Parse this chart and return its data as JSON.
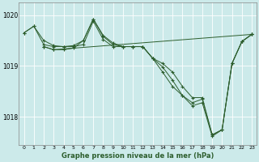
{
  "title": "Graphe pression niveau de la mer (hPa)",
  "background_color": "#cceaea",
  "line_color": "#2d5e2d",
  "marker": "+",
  "xlim": [
    -0.5,
    23.5
  ],
  "ylim": [
    1017.45,
    1020.25
  ],
  "yticks": [
    1018,
    1019,
    1020
  ],
  "xticks": [
    0,
    1,
    2,
    3,
    4,
    5,
    6,
    7,
    8,
    9,
    10,
    11,
    12,
    13,
    14,
    15,
    16,
    17,
    18,
    19,
    20,
    21,
    22,
    23
  ],
  "series": [
    {
      "x": [
        0,
        1,
        2,
        3,
        4,
        5,
        6,
        7,
        8,
        9,
        10,
        11,
        12,
        13,
        14,
        15,
        16,
        17,
        18,
        19,
        20,
        21,
        22,
        23
      ],
      "y": [
        1019.65,
        1019.78,
        1019.5,
        1019.4,
        1019.38,
        1019.4,
        1019.5,
        1019.92,
        1019.58,
        1019.42,
        1019.38,
        1019.38,
        1019.38,
        1019.15,
        1019.05,
        1018.88,
        1018.6,
        1018.38,
        1018.38,
        1017.65,
        1017.75,
        1019.05,
        1019.48,
        1019.62
      ]
    },
    {
      "x": [
        0,
        1,
        2,
        3,
        4,
        5,
        6,
        7,
        8,
        9,
        10,
        11,
        12,
        13,
        14,
        15,
        16,
        17,
        18,
        19,
        20,
        21,
        22,
        23
      ],
      "y": [
        1019.65,
        1019.78,
        1019.42,
        1019.38,
        1019.38,
        1019.38,
        1019.42,
        1019.88,
        1019.52,
        1019.38,
        1019.38,
        1019.38,
        1019.38,
        1019.15,
        1018.98,
        1018.72,
        1018.42,
        1018.28,
        1018.35,
        1017.65,
        1017.75,
        1019.05,
        1019.48,
        1019.62
      ]
    },
    {
      "x": [
        2,
        3,
        4,
        5,
        6,
        7,
        8,
        9,
        10,
        11,
        12,
        13,
        14,
        15,
        16,
        17,
        18,
        19,
        20,
        21,
        22,
        23
      ],
      "y": [
        1019.38,
        1019.32,
        1019.32,
        1019.35,
        1019.5,
        1019.92,
        1019.6,
        1019.45,
        1019.38,
        1019.38,
        1019.38,
        1019.15,
        1018.88,
        1018.6,
        1018.42,
        1018.22,
        1018.28,
        1017.62,
        1017.75,
        1019.05,
        1019.48,
        1019.62
      ]
    },
    {
      "x": [
        2,
        3,
        23
      ],
      "y": [
        1019.38,
        1019.32,
        1019.62
      ]
    }
  ]
}
